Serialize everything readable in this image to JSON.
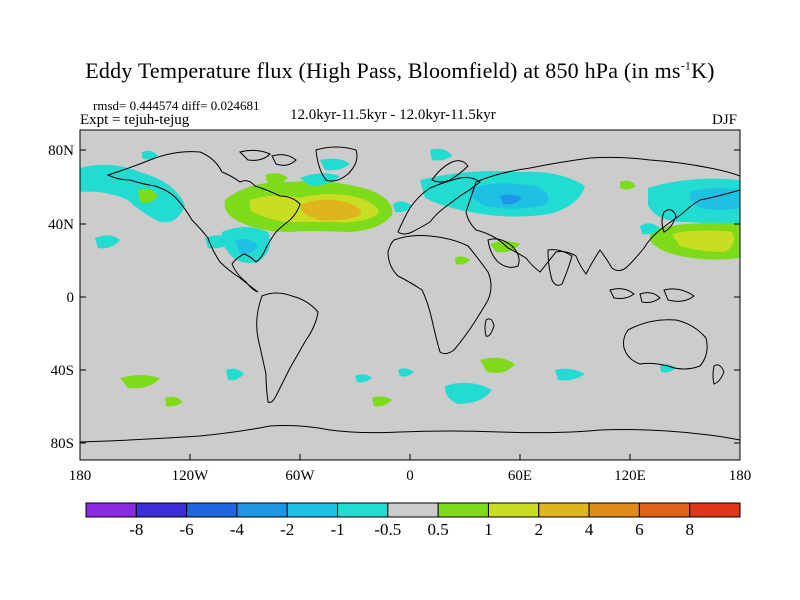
{
  "title": "Eddy Temperature flux (High Pass, Bloomfield) at 850 hPa (in ms",
  "title_sup": "-1",
  "title_end": "K)",
  "stats": "rmsd= 0.444574 diff= 0.024681",
  "expt": "Expt = tejuh-tejug",
  "period": "12.0kyr-11.5kyr - 12.0kyr-11.5kyr",
  "season": "DJF",
  "y_ticks": [
    "80N",
    "40N",
    "0",
    "40S",
    "80S"
  ],
  "x_ticks": [
    "180",
    "120W",
    "60W",
    "0",
    "60E",
    "120E",
    "180"
  ],
  "colorbar": {
    "labels": [
      "-8",
      "-6",
      "-4",
      "-2",
      "-1",
      "-0.5",
      "0.5",
      "1",
      "2",
      "4",
      "6",
      "8"
    ],
    "colors": [
      "#8a2be2",
      "#3a2fd6",
      "#1f66e0",
      "#1e96e6",
      "#1ec0e4",
      "#22dcd2",
      "#cccccc",
      "#7edb1a",
      "#c8de22",
      "#e0b41c",
      "#e08a18",
      "#e0621a",
      "#e03418"
    ]
  },
  "map_colors": {
    "background": "#cccccc",
    "cyan": "#22dcd2",
    "lightblue": "#1ec0e4",
    "blue": "#1e96e6",
    "green": "#7edb1a",
    "yellow": "#c8de22",
    "orange": "#e0b41c"
  }
}
